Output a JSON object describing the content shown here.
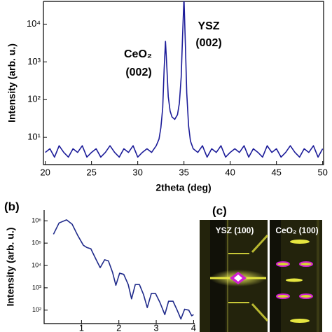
{
  "chart_data": [
    {
      "type": "line",
      "log_y": true,
      "color": "#1c1c99",
      "x_label": "2theta (deg)",
      "y_label": "Intensity (arb. u.)",
      "annotations": [
        [
          "CeO₂",
          "(002)"
        ],
        [
          "YSZ",
          "(002)"
        ]
      ],
      "x": [
        20,
        20.5,
        21,
        21.5,
        22,
        22.5,
        23,
        23.5,
        24,
        24.5,
        25,
        25.5,
        26,
        26.5,
        27,
        27.5,
        28,
        28.5,
        29,
        29.5,
        30,
        30.5,
        31,
        31.5,
        32,
        32.3,
        32.5,
        32.7,
        32.85,
        33,
        33.15,
        33.3,
        33.5,
        33.7,
        34,
        34.3,
        34.5,
        34.7,
        34.85,
        35,
        35.15,
        35.3,
        35.5,
        35.7,
        36,
        36.5,
        37,
        37.5,
        38,
        38.5,
        39,
        39.5,
        40,
        40.5,
        41,
        41.5,
        42,
        42.5,
        43,
        43.5,
        44,
        44.5,
        45,
        45.5,
        46,
        46.5,
        47,
        47.5,
        48,
        48.5,
        49,
        49.5,
        50
      ],
      "values": [
        4,
        5,
        3,
        6,
        4,
        3,
        5,
        4,
        6,
        3,
        4,
        5,
        3,
        4,
        6,
        4,
        3,
        5,
        4,
        6,
        3,
        4,
        5,
        4,
        6,
        9,
        18,
        60,
        600,
        3500,
        700,
        120,
        50,
        35,
        30,
        40,
        80,
        400,
        5000,
        50000,
        3000,
        150,
        20,
        8,
        5,
        4,
        6,
        3,
        5,
        4,
        6,
        3,
        4,
        5,
        4,
        6,
        3,
        5,
        4,
        3,
        6,
        4,
        5,
        3,
        4,
        6,
        4,
        3,
        5,
        4,
        6,
        3,
        5
      ],
      "xlim": [
        19.8,
        50.1
      ],
      "xticks": [
        20,
        25,
        30,
        35,
        40,
        45,
        50
      ],
      "ylim": [
        1.9,
        40000
      ],
      "yticks": [
        {
          "value": 10,
          "label": "10¹"
        },
        {
          "value": 100,
          "label": "10²"
        },
        {
          "value": 1000,
          "label": "10³"
        },
        {
          "value": 10000,
          "label": "10⁴"
        }
      ]
    },
    {
      "type": "line",
      "log_y": true,
      "color": "#1f2a8a",
      "panel_label": "(b)",
      "y_label": "Intensity (arb. u.)",
      "x": [
        0.25,
        0.4,
        0.6,
        0.75,
        0.9,
        1.05,
        1.15,
        1.25,
        1.38,
        1.5,
        1.62,
        1.72,
        1.83,
        1.92,
        2.02,
        2.13,
        2.25,
        2.34,
        2.44,
        2.55,
        2.66,
        2.76,
        2.87,
        2.98,
        3.1,
        3.23,
        3.33,
        3.45,
        3.56,
        3.66,
        3.76,
        3.87,
        3.95,
        4.0
      ],
      "values": [
        250000,
        800000,
        1100000,
        700000,
        220000,
        80000,
        63000,
        56000,
        20000,
        8000,
        18000,
        16000,
        5000,
        1300,
        4500,
        4000,
        1400,
        320,
        1400,
        1400,
        500,
        130,
        560,
        560,
        220,
        63,
        250,
        250,
        100,
        40,
        110,
        100,
        56,
        63
      ],
      "xlim": [
        0,
        4.03
      ],
      "xticks": [
        1,
        2,
        3,
        4
      ],
      "ylim": [
        25,
        3000000
      ],
      "yticks": [
        {
          "value": 100,
          "label": "10²"
        },
        {
          "value": 1000,
          "label": "10³"
        },
        {
          "value": 10000,
          "label": "10⁴"
        },
        {
          "value": 100000,
          "label": "10⁵"
        },
        {
          "value": 1000000,
          "label": "10⁶"
        }
      ]
    }
  ],
  "panel_c": {
    "label": "(c)",
    "images": [
      "YSZ (100)",
      "CeO₂ (100)"
    ]
  }
}
